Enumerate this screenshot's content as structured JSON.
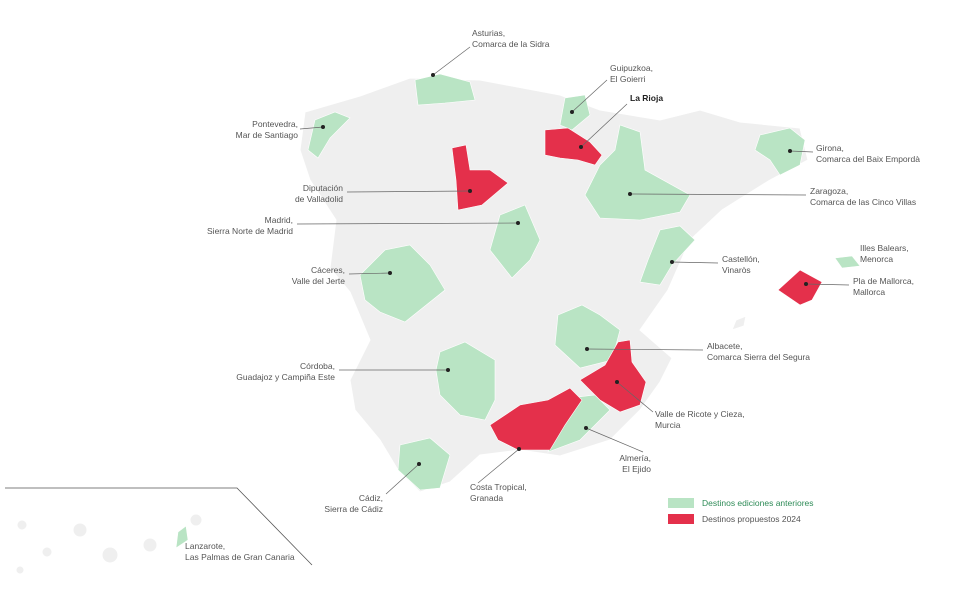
{
  "destinations": [
    {
      "region": "Asturias,",
      "place": "Comarca de la Sidra"
    },
    {
      "region": "Guipuzkoa,",
      "place": "El Goierri"
    },
    {
      "place": "La Rioja"
    },
    {
      "region": "Pontevedra,",
      "place": "Mar de Santiago"
    },
    {
      "region": "Girona,",
      "place": "Comarca del Baix Empordà"
    },
    {
      "region": "Diputación",
      "place": "de Valladolid"
    },
    {
      "region": "Zaragoza,",
      "place": "Comarca de las Cinco Villas"
    },
    {
      "region": "Madrid,",
      "place": "Sierra Norte de Madrid"
    },
    {
      "region": "Illes Balears,",
      "place": "Menorca"
    },
    {
      "region": "Castellón,",
      "place": "Vinaròs"
    },
    {
      "region": "Cáceres,",
      "place": "Valle del Jerte"
    },
    {
      "region": "Pla de Mallorca,",
      "place": "Mallorca"
    },
    {
      "region": "Albacete,",
      "place": "Comarca Sierra del Segura"
    },
    {
      "region": "Córdoba,",
      "place": "Guadajoz y Campiña Este"
    },
    {
      "region": "Valle de Ricote y Cieza,",
      "place": "Murcia"
    },
    {
      "region": "Almería,",
      "place": "El Ejido"
    },
    {
      "region": "Cádiz,",
      "place": "Sierra de Cádiz"
    },
    {
      "region": "Costa Tropical,",
      "place": "Granada"
    },
    {
      "region": "Lanzarote,",
      "place": "Las Palmas de Gran Canaria"
    }
  ],
  "legend": [
    {
      "label": "Destinos ediciones anteriores",
      "color": "#b9e4c4"
    },
    {
      "label": "Destinos propuestos 2024",
      "color": "#e4304b"
    }
  ]
}
